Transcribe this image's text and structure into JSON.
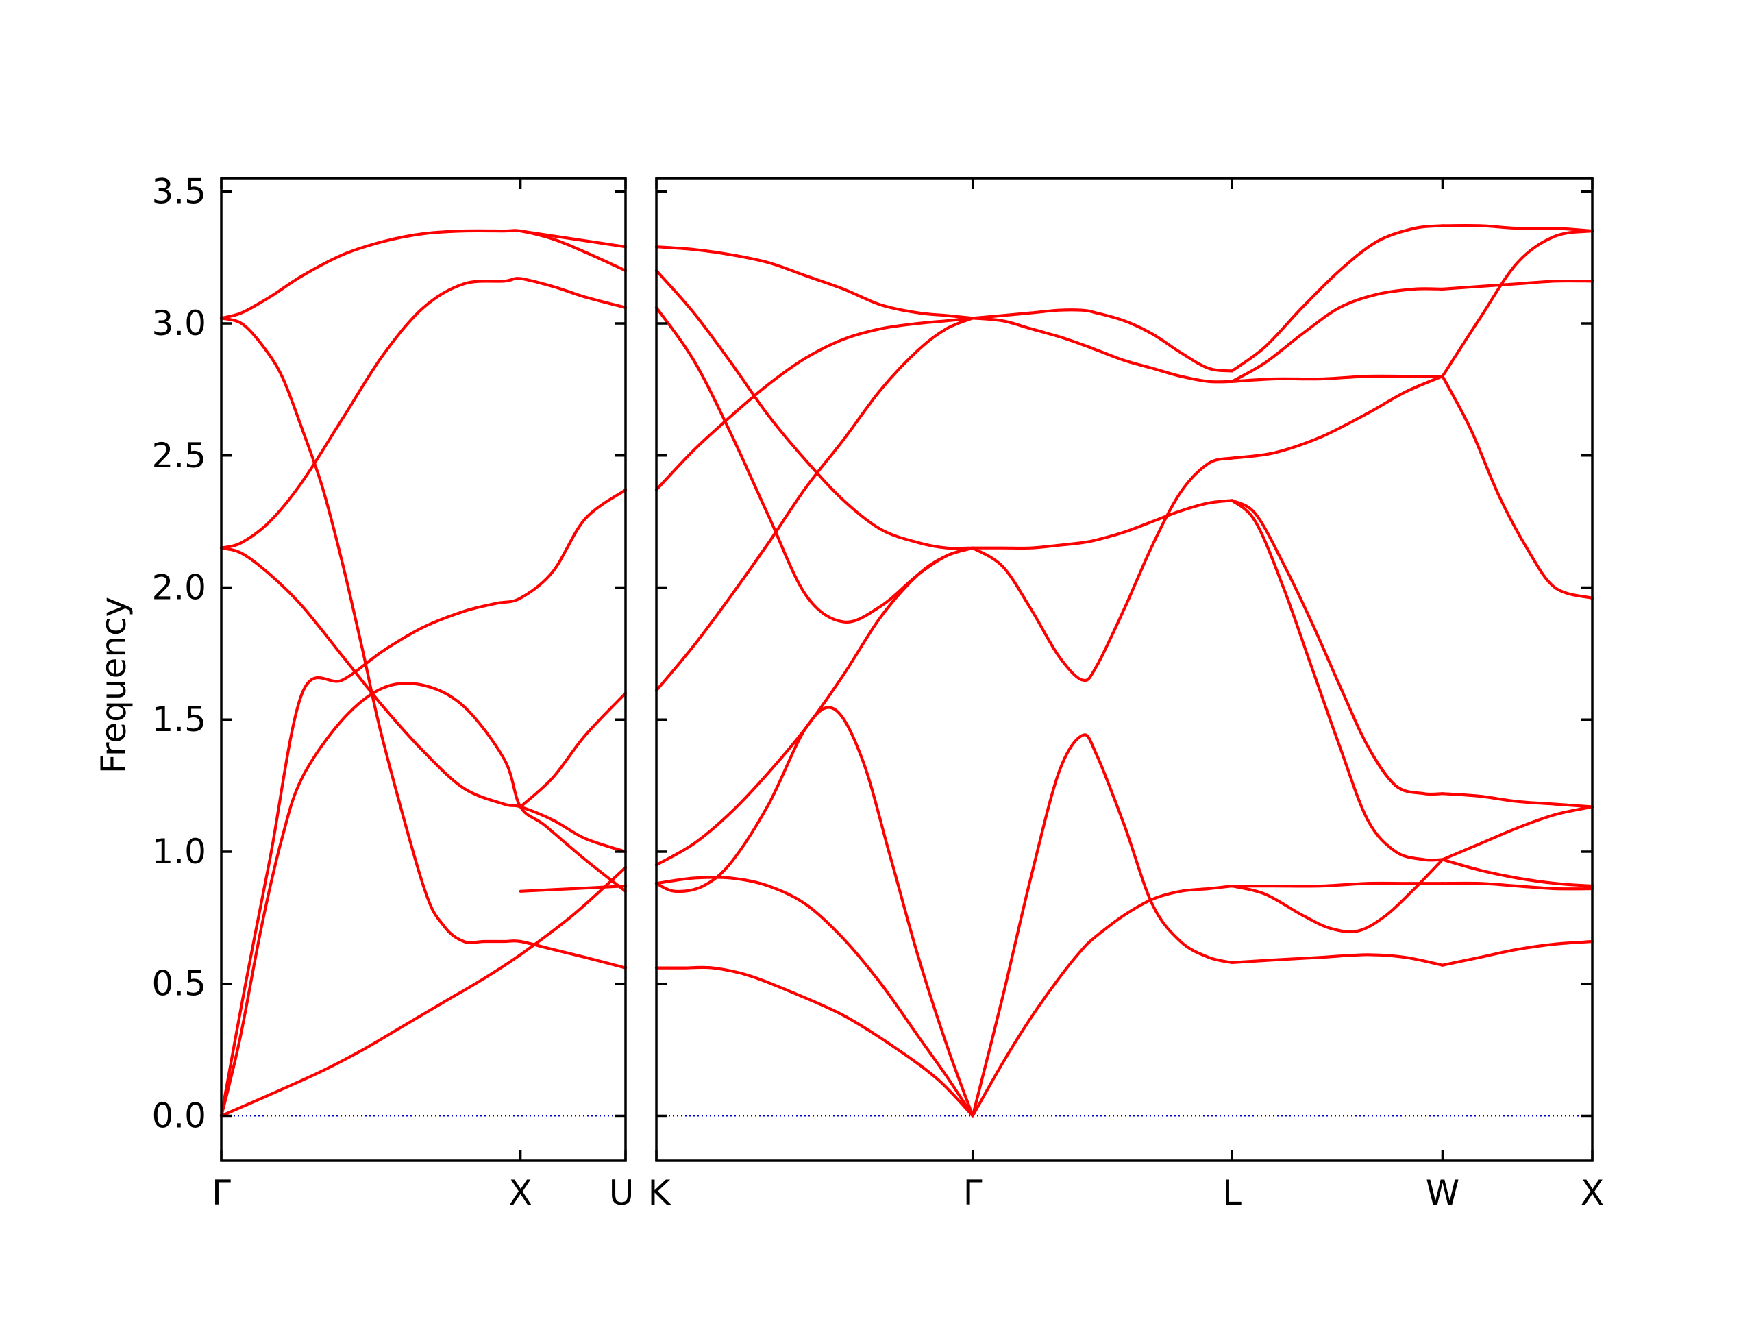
{
  "chart_data": {
    "type": "line",
    "ylabel": "Frequency",
    "ylim": [
      -0.17,
      3.55
    ],
    "yticks": [
      0.0,
      0.5,
      1.0,
      1.5,
      2.0,
      2.5,
      3.0,
      3.5
    ],
    "ytick_labels": [
      "0.0",
      "0.5",
      "1.0",
      "1.5",
      "2.0",
      "2.5",
      "3.0",
      "3.5"
    ],
    "grid": false,
    "colors": {
      "bands": "#ff0000",
      "zero_line": "#0000cc",
      "axes": "#000000"
    },
    "segments": [
      {
        "path": "Γ–X–U",
        "xlim": [
          0,
          1.0
        ],
        "high_symmetry_points": [
          {
            "label": "Γ",
            "x": 0.0
          },
          {
            "label": "X",
            "x": 0.74
          },
          {
            "label": "U",
            "x": 1.0
          }
        ],
        "bands": [
          {
            "x": [
              0,
              0.12,
              0.25,
              0.35,
              0.45,
              0.55,
              0.65,
              0.74,
              0.87,
              1.0
            ],
            "y": [
              0,
              0.08,
              0.17,
              0.25,
              0.34,
              0.43,
              0.52,
              0.61,
              0.76,
              0.94
            ]
          },
          {
            "x": [
              0,
              0.06,
              0.12,
              0.2,
              0.3,
              0.4,
              0.5,
              0.6,
              0.68,
              0.74,
              0.82,
              0.9,
              1.0
            ],
            "y": [
              0,
              0.5,
              0.97,
              1.6,
              1.65,
              1.76,
              1.85,
              1.91,
              1.94,
              1.96,
              2.06,
              2.26,
              2.37
            ]
          },
          {
            "x": [
              0,
              0.05,
              0.1,
              0.15,
              0.2,
              0.25,
              0.3,
              0.35,
              0.4,
              0.5,
              0.55,
              0.6,
              0.65,
              0.7,
              0.74,
              0.82,
              0.9,
              1.0
            ],
            "y": [
              3.02,
              3.0,
              2.92,
              2.8,
              2.6,
              2.38,
              2.09,
              1.76,
              1.42,
              0.87,
              0.72,
              0.66,
              0.66,
              0.66,
              0.66,
              0.63,
              0.6,
              0.56
            ]
          },
          {
            "x": [
              0,
              0.05,
              0.12,
              0.2,
              0.3,
              0.4,
              0.5,
              0.6,
              0.7,
              0.74,
              0.82,
              0.9,
              1.0
            ],
            "y": [
              2.15,
              2.13,
              2.05,
              1.93,
              1.74,
              1.55,
              1.38,
              1.24,
              1.18,
              1.17,
              1.12,
              1.05,
              1.0
            ]
          },
          {
            "x": [
              0,
              0.05,
              0.12,
              0.2,
              0.3,
              0.4,
              0.5,
              0.6,
              0.7,
              0.74,
              0.82,
              0.9,
              1.0
            ],
            "y": [
              2.15,
              2.17,
              2.25,
              2.4,
              2.64,
              2.88,
              3.06,
              3.15,
              3.16,
              3.17,
              3.14,
              3.1,
              3.06
            ]
          },
          {
            "x": [
              0,
              0.05,
              0.12,
              0.2,
              0.3,
              0.4,
              0.5,
              0.6,
              0.7,
              0.74,
              0.82,
              0.9,
              1.0
            ],
            "y": [
              3.02,
              3.04,
              3.1,
              3.18,
              3.26,
              3.31,
              3.34,
              3.35,
              3.35,
              3.35,
              3.32,
              3.27,
              3.2
            ]
          },
          {
            "x": [
              0,
              0.02,
              0.05,
              0.1,
              0.15,
              0.2,
              0.3,
              0.4,
              0.5,
              0.6,
              0.7,
              0.74,
              0.8,
              0.9,
              1.0
            ],
            "y": [
              0,
              0.12,
              0.32,
              0.72,
              1.05,
              1.28,
              1.5,
              1.62,
              1.63,
              1.55,
              1.35,
              1.17,
              1.1,
              0.97,
              0.85
            ]
          },
          {
            "x": [
              0.74,
              0.87,
              1.0
            ],
            "y": [
              0.85,
              0.86,
              0.87
            ]
          },
          {
            "x": [
              0.74,
              0.82,
              0.9,
              1.0
            ],
            "y": [
              1.17,
              1.28,
              1.44,
              1.6
            ]
          },
          {
            "x": [
              0.74,
              0.87,
              1.0
            ],
            "y": [
              3.35,
              3.32,
              3.29
            ]
          }
        ]
      },
      {
        "path": "K–Γ–L–W–X",
        "xlim": [
          0,
          1.0
        ],
        "high_symmetry_points": [
          {
            "label": "K",
            "x": 0.0
          },
          {
            "label": "Γ",
            "x": 0.338
          },
          {
            "label": "L",
            "x": 0.615
          },
          {
            "label": "W",
            "x": 0.84
          },
          {
            "label": "X",
            "x": 1.0
          }
        ],
        "bands": [
          {
            "x": [
              0,
              0.03,
              0.06,
              0.1,
              0.15,
              0.2,
              0.25,
              0.3,
              0.338
            ],
            "y": [
              0.56,
              0.56,
              0.56,
              0.53,
              0.46,
              0.38,
              0.27,
              0.14,
              0
            ]
          },
          {
            "x": [
              0,
              0.04,
              0.08,
              0.12,
              0.16,
              0.2,
              0.24,
              0.28,
              0.31,
              0.338
            ],
            "y": [
              0.88,
              0.9,
              0.9,
              0.87,
              0.8,
              0.67,
              0.5,
              0.3,
              0.15,
              0
            ]
          },
          {
            "x": [
              0,
              0.02,
              0.05,
              0.08,
              0.12,
              0.16,
              0.19,
              0.22,
              0.25,
              0.28,
              0.31,
              0.338
            ],
            "y": [
              0.88,
              0.85,
              0.87,
              0.96,
              1.18,
              1.47,
              1.54,
              1.35,
              0.98,
              0.6,
              0.27,
              0
            ]
          },
          {
            "x": [
              0,
              0.04,
              0.08,
              0.12,
              0.16,
              0.2,
              0.24,
              0.28,
              0.31,
              0.338
            ],
            "y": [
              1.61,
              1.78,
              1.97,
              2.17,
              2.38,
              2.56,
              2.75,
              2.9,
              2.98,
              3.02
            ]
          },
          {
            "x": [
              0,
              0.04,
              0.08,
              0.12,
              0.16,
              0.2,
              0.24,
              0.28,
              0.31,
              0.338
            ],
            "y": [
              2.37,
              2.52,
              2.65,
              2.77,
              2.87,
              2.94,
              2.98,
              3.0,
              3.01,
              3.02
            ]
          },
          {
            "x": [
              0,
              0.04,
              0.08,
              0.12,
              0.16,
              0.2,
              0.24,
              0.28,
              0.31,
              0.338
            ],
            "y": [
              3.29,
              3.28,
              3.26,
              3.23,
              3.18,
              3.13,
              3.07,
              3.04,
              3.03,
              3.02
            ]
          },
          {
            "x": [
              0,
              0.04,
              0.08,
              0.12,
              0.16,
              0.2,
              0.24,
              0.28,
              0.31,
              0.338
            ],
            "y": [
              3.06,
              2.86,
              2.58,
              2.27,
              1.97,
              1.87,
              1.93,
              2.05,
              2.12,
              2.15
            ]
          },
          {
            "x": [
              0,
              0.04,
              0.08,
              0.12,
              0.16,
              0.2,
              0.24,
              0.28,
              0.31,
              0.338
            ],
            "y": [
              0.95,
              1.03,
              1.15,
              1.3,
              1.47,
              1.67,
              1.89,
              2.05,
              2.12,
              2.15
            ]
          },
          {
            "x": [
              0,
              0.04,
              0.08,
              0.12,
              0.16,
              0.2,
              0.24,
              0.28,
              0.31,
              0.338
            ],
            "y": [
              3.2,
              3.04,
              2.85,
              2.65,
              2.48,
              2.33,
              2.22,
              2.17,
              2.15,
              2.15
            ]
          },
          {
            "x": [
              0.338,
              0.37,
              0.4,
              0.43,
              0.455,
              0.47,
              0.5,
              0.53,
              0.56,
              0.59,
              0.615
            ],
            "y": [
              0,
              0.2,
              0.37,
              0.52,
              0.63,
              0.68,
              0.76,
              0.82,
              0.85,
              0.86,
              0.87
            ]
          },
          {
            "x": [
              0.338,
              0.37,
              0.4,
              0.43,
              0.455,
              0.47,
              0.5,
              0.53,
              0.56,
              0.59,
              0.615
            ],
            "y": [
              0,
              0.45,
              0.9,
              1.3,
              1.44,
              1.37,
              1.1,
              0.8,
              0.66,
              0.6,
              0.58
            ]
          },
          {
            "x": [
              0.338,
              0.37,
              0.4,
              0.43,
              0.455,
              0.47,
              0.5,
              0.53,
              0.56,
              0.59,
              0.615
            ],
            "y": [
              2.15,
              2.08,
              1.92,
              1.74,
              1.65,
              1.7,
              1.92,
              2.16,
              2.36,
              2.47,
              2.49
            ]
          },
          {
            "x": [
              0.338,
              0.37,
              0.4,
              0.43,
              0.455,
              0.47,
              0.5,
              0.53,
              0.56,
              0.59,
              0.615
            ],
            "y": [
              2.15,
              2.15,
              2.15,
              2.16,
              2.17,
              2.18,
              2.21,
              2.25,
              2.29,
              2.32,
              2.33
            ]
          },
          {
            "x": [
              0.338,
              0.37,
              0.4,
              0.43,
              0.455,
              0.47,
              0.5,
              0.53,
              0.56,
              0.59,
              0.615
            ],
            "y": [
              3.02,
              3.01,
              2.98,
              2.95,
              2.92,
              2.9,
              2.86,
              2.83,
              2.8,
              2.78,
              2.78
            ]
          },
          {
            "x": [
              0.338,
              0.37,
              0.4,
              0.43,
              0.455,
              0.47,
              0.5,
              0.53,
              0.56,
              0.59,
              0.615
            ],
            "y": [
              3.02,
              3.03,
              3.04,
              3.05,
              3.05,
              3.04,
              3.01,
              2.96,
              2.89,
              2.83,
              2.82
            ]
          },
          {
            "x": [
              0.615,
              0.65,
              0.69,
              0.72,
              0.75,
              0.78,
              0.81,
              0.84
            ],
            "y": [
              0.87,
              0.84,
              0.76,
              0.71,
              0.7,
              0.76,
              0.86,
              0.97
            ]
          },
          {
            "x": [
              0.615,
              0.66,
              0.71,
              0.76,
              0.8,
              0.84
            ],
            "y": [
              0.87,
              0.87,
              0.87,
              0.88,
              0.88,
              0.88
            ]
          },
          {
            "x": [
              0.615,
              0.66,
              0.71,
              0.76,
              0.8,
              0.84
            ],
            "y": [
              0.58,
              0.59,
              0.6,
              0.61,
              0.6,
              0.57
            ]
          },
          {
            "x": [
              0.615,
              0.64,
              0.67,
              0.7,
              0.73,
              0.76,
              0.79,
              0.82,
              0.84
            ],
            "y": [
              2.33,
              2.25,
              2.0,
              1.7,
              1.4,
              1.12,
              1.0,
              0.97,
              0.97
            ]
          },
          {
            "x": [
              0.615,
              0.64,
              0.67,
              0.7,
              0.73,
              0.76,
              0.79,
              0.82,
              0.84
            ],
            "y": [
              2.33,
              2.28,
              2.09,
              1.87,
              1.63,
              1.4,
              1.25,
              1.22,
              1.22
            ]
          },
          {
            "x": [
              0.615,
              0.66,
              0.71,
              0.76,
              0.8,
              0.84
            ],
            "y": [
              2.49,
              2.51,
              2.57,
              2.66,
              2.74,
              2.8
            ]
          },
          {
            "x": [
              0.615,
              0.66,
              0.71,
              0.76,
              0.8,
              0.84
            ],
            "y": [
              2.78,
              2.79,
              2.79,
              2.8,
              2.8,
              2.8
            ]
          },
          {
            "x": [
              0.615,
              0.65,
              0.69,
              0.73,
              0.77,
              0.81,
              0.84
            ],
            "y": [
              2.82,
              2.91,
              3.06,
              3.2,
              3.31,
              3.36,
              3.37
            ]
          },
          {
            "x": [
              0.615,
              0.65,
              0.69,
              0.73,
              0.77,
              0.81,
              0.84
            ],
            "y": [
              2.78,
              2.85,
              2.96,
              3.06,
              3.11,
              3.13,
              3.13
            ]
          },
          {
            "x": [
              0.84,
              0.88,
              0.92,
              0.96,
              1.0
            ],
            "y": [
              0.97,
              1.03,
              1.09,
              1.14,
              1.17
            ]
          },
          {
            "x": [
              0.84,
              0.88,
              0.92,
              0.96,
              1.0
            ],
            "y": [
              1.22,
              1.21,
              1.19,
              1.18,
              1.17
            ]
          },
          {
            "x": [
              0.84,
              0.88,
              0.92,
              0.96,
              1.0
            ],
            "y": [
              0.97,
              0.93,
              0.9,
              0.88,
              0.87
            ]
          },
          {
            "x": [
              0.84,
              0.88,
              0.92,
              0.96,
              1.0
            ],
            "y": [
              0.88,
              0.88,
              0.87,
              0.86,
              0.86
            ]
          },
          {
            "x": [
              0.84,
              0.88,
              0.92,
              0.96,
              1.0
            ],
            "y": [
              0.57,
              0.6,
              0.63,
              0.65,
              0.66
            ]
          },
          {
            "x": [
              0.84,
              0.87,
              0.9,
              0.93,
              0.96,
              1.0
            ],
            "y": [
              2.8,
              2.6,
              2.35,
              2.15,
              2.0,
              1.96
            ]
          },
          {
            "x": [
              0.84,
              0.88,
              0.92,
              0.96,
              1.0
            ],
            "y": [
              2.8,
              3.02,
              3.23,
              3.33,
              3.35
            ]
          },
          {
            "x": [
              0.84,
              0.88,
              0.92,
              0.96,
              1.0
            ],
            "y": [
              3.13,
              3.14,
              3.15,
              3.16,
              3.16
            ]
          },
          {
            "x": [
              0.84,
              0.88,
              0.92,
              0.96,
              1.0
            ],
            "y": [
              3.37,
              3.37,
              3.36,
              3.36,
              3.35
            ]
          }
        ]
      }
    ]
  }
}
